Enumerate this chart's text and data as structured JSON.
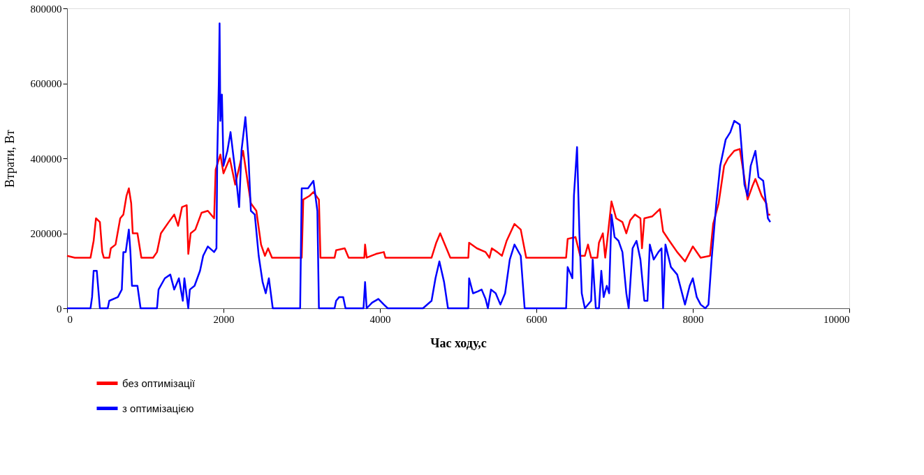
{
  "chart_data": {
    "type": "line",
    "xlabel": "Час ходу,с",
    "ylabel": "Втрати, Вт",
    "xlim": [
      0,
      10000
    ],
    "xticks": [
      0,
      2000,
      4000,
      6000,
      8000,
      10000
    ],
    "ylim": [
      0,
      800000
    ],
    "yticks": [
      0,
      200000,
      400000,
      600000,
      800000
    ],
    "grid": false,
    "legend": "bottom",
    "series": [
      {
        "name": "без оптимізації",
        "color": "#ff0000",
        "x": [
          0,
          100,
          300,
          340,
          370,
          420,
          450,
          470,
          540,
          560,
          620,
          680,
          720,
          760,
          790,
          820,
          840,
          900,
          950,
          1100,
          1150,
          1200,
          1300,
          1370,
          1420,
          1470,
          1530,
          1550,
          1580,
          1640,
          1720,
          1800,
          1880,
          1900,
          1960,
          2000,
          2080,
          2150,
          2250,
          2300,
          2350,
          2420,
          2480,
          2530,
          2570,
          2620,
          3000,
          3020,
          3100,
          3150,
          3220,
          3240,
          3420,
          3440,
          3550,
          3600,
          3800,
          3810,
          3830,
          3950,
          4050,
          4070,
          4660,
          4720,
          4770,
          4850,
          4900,
          5130,
          5140,
          5240,
          5350,
          5400,
          5430,
          5500,
          5560,
          5620,
          5720,
          5800,
          5870,
          6380,
          6400,
          6500,
          6560,
          6620,
          6660,
          6700,
          6780,
          6800,
          6850,
          6880,
          6900,
          6960,
          7020,
          7100,
          7150,
          7200,
          7260,
          7330,
          7350,
          7380,
          7480,
          7580,
          7620,
          7700,
          7800,
          7900,
          7950,
          8000,
          8100,
          8220,
          8260,
          8330,
          8400,
          8450,
          8530,
          8600,
          8650,
          8700,
          8760,
          8800,
          8880,
          8940,
          8960,
          8990
        ],
        "values": [
          140000,
          135000,
          135000,
          180000,
          240000,
          230000,
          150000,
          135000,
          135000,
          160000,
          170000,
          240000,
          250000,
          300000,
          320000,
          280000,
          200000,
          200000,
          135000,
          135000,
          150000,
          200000,
          230000,
          250000,
          220000,
          270000,
          275000,
          145000,
          200000,
          210000,
          255000,
          260000,
          240000,
          370000,
          410000,
          360000,
          400000,
          330000,
          420000,
          350000,
          280000,
          260000,
          170000,
          140000,
          160000,
          135000,
          135000,
          290000,
          300000,
          310000,
          290000,
          135000,
          135000,
          155000,
          160000,
          135000,
          135000,
          170000,
          135000,
          145000,
          150000,
          135000,
          135000,
          175000,
          200000,
          160000,
          135000,
          135000,
          175000,
          160000,
          150000,
          135000,
          160000,
          150000,
          140000,
          180000,
          225000,
          210000,
          135000,
          135000,
          185000,
          190000,
          140000,
          140000,
          170000,
          135000,
          135000,
          175000,
          200000,
          135000,
          170000,
          285000,
          240000,
          230000,
          200000,
          235000,
          250000,
          240000,
          160000,
          240000,
          245000,
          265000,
          205000,
          180000,
          150000,
          125000,
          145000,
          165000,
          135000,
          140000,
          225000,
          280000,
          380000,
          400000,
          420000,
          425000,
          360000,
          290000,
          325000,
          345000,
          300000,
          280000,
          250000,
          250000
        ]
      },
      {
        "name": "з оптимізацією",
        "color": "#0000ff",
        "x": [
          0,
          300,
          320,
          340,
          380,
          400,
          420,
          520,
          540,
          650,
          700,
          720,
          750,
          790,
          810,
          830,
          900,
          940,
          1150,
          1170,
          1250,
          1320,
          1370,
          1430,
          1480,
          1500,
          1550,
          1570,
          1630,
          1700,
          1740,
          1800,
          1880,
          1910,
          1920,
          1940,
          1950,
          1960,
          1980,
          2000,
          2050,
          2090,
          2130,
          2160,
          2200,
          2230,
          2280,
          2320,
          2350,
          2400,
          2450,
          2500,
          2540,
          2580,
          2630,
          2980,
          3000,
          3080,
          3150,
          3200,
          3220,
          3420,
          3440,
          3480,
          3530,
          3560,
          3790,
          3810,
          3830,
          3900,
          3980,
          4050,
          4100,
          4550,
          4660,
          4710,
          4760,
          4820,
          4870,
          5130,
          5140,
          5190,
          5250,
          5300,
          5350,
          5380,
          5420,
          5480,
          5540,
          5600,
          5660,
          5720,
          5800,
          5850,
          6380,
          6400,
          6460,
          6480,
          6520,
          6550,
          6580,
          6620,
          6700,
          6720,
          6760,
          6800,
          6830,
          6860,
          6900,
          6930,
          6960,
          7000,
          7050,
          7100,
          7150,
          7180,
          7230,
          7280,
          7330,
          7380,
          7420,
          7450,
          7500,
          7560,
          7600,
          7620,
          7650,
          7720,
          7800,
          7850,
          7900,
          7960,
          8000,
          8050,
          8100,
          8160,
          8200,
          8240,
          8300,
          8350,
          8420,
          8480,
          8530,
          8600,
          8660,
          8700,
          8740,
          8800,
          8840,
          8900,
          8960,
          8990
        ],
        "values": [
          0,
          0,
          30000,
          100000,
          100000,
          50000,
          0,
          0,
          20000,
          30000,
          50000,
          150000,
          150000,
          210000,
          150000,
          60000,
          60000,
          0,
          0,
          50000,
          80000,
          90000,
          50000,
          80000,
          20000,
          80000,
          0,
          50000,
          60000,
          100000,
          140000,
          165000,
          150000,
          160000,
          400000,
          600000,
          760000,
          500000,
          570000,
          380000,
          420000,
          470000,
          400000,
          350000,
          270000,
          420000,
          510000,
          400000,
          260000,
          250000,
          140000,
          70000,
          40000,
          80000,
          0,
          0,
          320000,
          320000,
          340000,
          260000,
          0,
          0,
          20000,
          30000,
          30000,
          0,
          0,
          70000,
          0,
          15000,
          25000,
          10000,
          0,
          0,
          20000,
          80000,
          125000,
          70000,
          0,
          0,
          80000,
          40000,
          45000,
          50000,
          25000,
          0,
          50000,
          40000,
          10000,
          40000,
          130000,
          170000,
          140000,
          0,
          0,
          110000,
          80000,
          300000,
          430000,
          200000,
          40000,
          0,
          20000,
          130000,
          0,
          0,
          100000,
          30000,
          60000,
          40000,
          250000,
          190000,
          180000,
          150000,
          40000,
          0,
          160000,
          180000,
          130000,
          20000,
          20000,
          170000,
          130000,
          150000,
          160000,
          0,
          170000,
          110000,
          90000,
          50000,
          10000,
          60000,
          80000,
          30000,
          10000,
          0,
          10000,
          130000,
          280000,
          380000,
          450000,
          470000,
          500000,
          490000,
          330000,
          300000,
          380000,
          420000,
          350000,
          340000,
          240000,
          230000
        ]
      }
    ]
  }
}
